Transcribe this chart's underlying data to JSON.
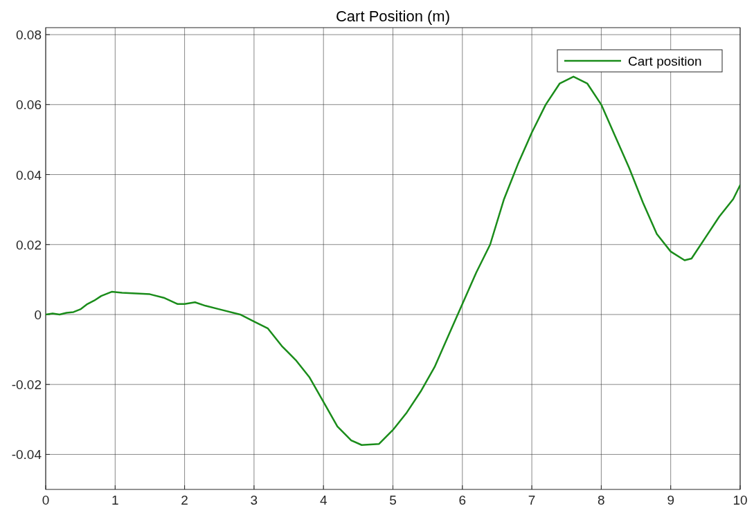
{
  "chart_data": {
    "type": "line",
    "title": "Cart Position (m)",
    "x": [
      0,
      0.1,
      0.2,
      0.3,
      0.4,
      0.5,
      0.6,
      0.7,
      0.8,
      0.95,
      1.1,
      1.3,
      1.5,
      1.7,
      1.9,
      2.0,
      2.15,
      2.3,
      2.5,
      2.8,
      3.0,
      3.2,
      3.4,
      3.6,
      3.8,
      4.0,
      4.2,
      4.4,
      4.55,
      4.8,
      5.0,
      5.2,
      5.4,
      5.6,
      5.8,
      6.0,
      6.2,
      6.4,
      6.6,
      6.8,
      7.0,
      7.2,
      7.4,
      7.6,
      7.8,
      8.0,
      8.2,
      8.4,
      8.6,
      8.8,
      9.0,
      9.2,
      9.3,
      9.5,
      9.7,
      9.9,
      10
    ],
    "series": [
      {
        "name": "Cart position",
        "color": "#1a8c1a",
        "values": [
          0,
          0.0003,
          0,
          0.0005,
          0.0007,
          0.0015,
          0.003,
          0.004,
          0.0053,
          0.0065,
          0.0062,
          0.006,
          0.0058,
          0.0048,
          0.003,
          0.003,
          0.0035,
          0.0025,
          0.0015,
          0,
          -0.002,
          -0.004,
          -0.009,
          -0.013,
          -0.018,
          -0.025,
          -0.032,
          -0.036,
          -0.0373,
          -0.037,
          -0.033,
          -0.028,
          -0.022,
          -0.015,
          -0.006,
          0.003,
          0.012,
          0.02,
          0.033,
          0.043,
          0.052,
          0.06,
          0.066,
          0.068,
          0.066,
          0.06,
          0.051,
          0.042,
          0.032,
          0.023,
          0.018,
          0.0155,
          0.016,
          0.022,
          0.028,
          0.033,
          0.037
        ]
      }
    ],
    "xlim": [
      0,
      10
    ],
    "xticks": [
      0,
      1,
      2,
      3,
      4,
      5,
      6,
      7,
      8,
      9,
      10
    ],
    "ylim": [
      -0.05,
      0.082
    ],
    "yticks": [
      -0.04,
      -0.02,
      0,
      0.02,
      0.04,
      0.06,
      0.08
    ],
    "grid": true,
    "legend": "top right"
  }
}
